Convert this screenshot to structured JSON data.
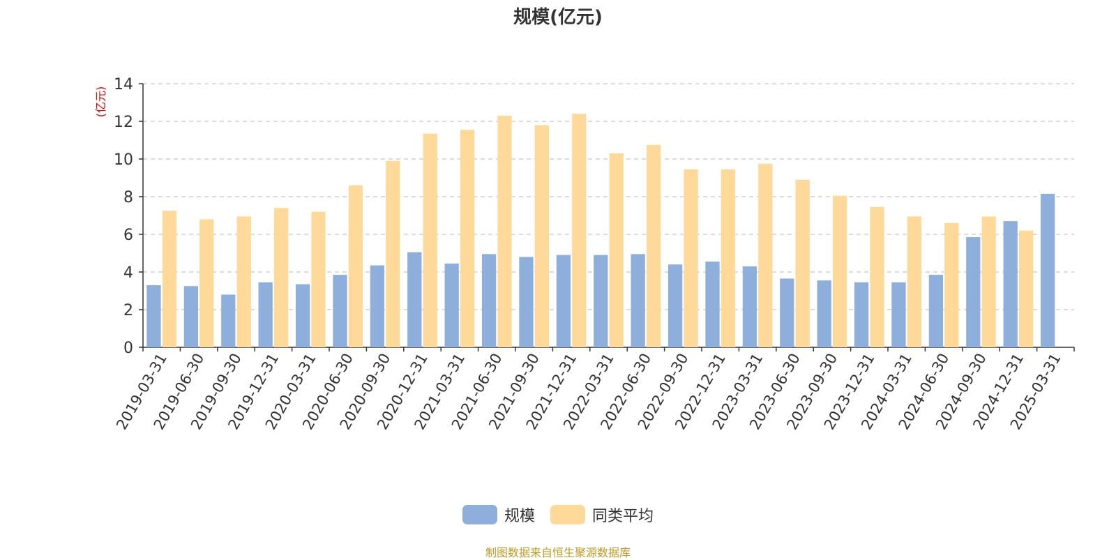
{
  "title": "规模(亿元)",
  "source_note": "制图数据来自恒生聚源数据库",
  "colors": {
    "series_1": "#8eaedb",
    "series_2": "#ffd99a",
    "unit_label": "#ee0000",
    "grid": "#c8c8c8",
    "axis": "#333333"
  },
  "chart_data": {
    "type": "bar",
    "title": "规模(亿元)",
    "ylabel": "(亿元)",
    "ylim": [
      0,
      14
    ],
    "yticks": [
      0,
      2,
      4,
      6,
      8,
      10,
      12,
      14
    ],
    "grid": true,
    "legend": "bottom-center",
    "categories": [
      "2019-03-31",
      "2019-06-30",
      "2019-09-30",
      "2019-12-31",
      "2020-03-31",
      "2020-06-30",
      "2020-09-30",
      "2020-12-31",
      "2021-03-31",
      "2021-06-30",
      "2021-09-30",
      "2021-12-31",
      "2022-03-31",
      "2022-06-30",
      "2022-09-30",
      "2022-12-31",
      "2023-03-31",
      "2023-06-30",
      "2023-09-30",
      "2023-12-31",
      "2024-03-31",
      "2024-06-30",
      "2024-09-30",
      "2024-12-31",
      "2025-03-31"
    ],
    "series": [
      {
        "name": "规模",
        "color": "#8eaedb",
        "values": [
          3.3,
          3.25,
          2.8,
          3.45,
          3.35,
          3.85,
          4.35,
          5.05,
          4.45,
          4.95,
          4.8,
          4.9,
          4.9,
          4.95,
          4.4,
          4.55,
          4.3,
          3.65,
          3.55,
          3.45,
          3.45,
          3.85,
          5.85,
          6.7,
          8.15
        ]
      },
      {
        "name": "同类平均",
        "color": "#ffd99a",
        "values": [
          7.25,
          6.8,
          6.95,
          7.4,
          7.2,
          8.6,
          9.9,
          11.35,
          11.55,
          12.3,
          11.8,
          12.4,
          10.3,
          10.75,
          9.45,
          9.45,
          9.75,
          8.9,
          8.05,
          7.45,
          6.95,
          6.6,
          6.95,
          6.2,
          null
        ]
      }
    ]
  }
}
